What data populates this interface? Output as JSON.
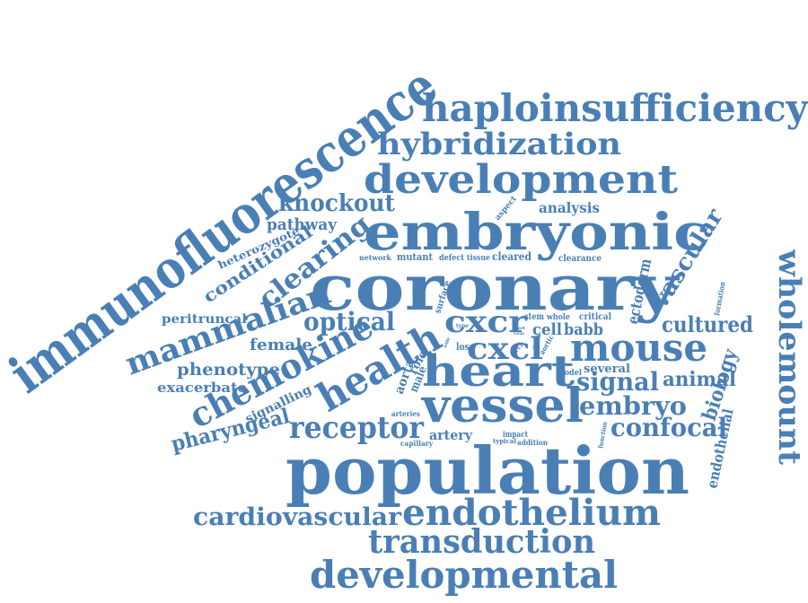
{
  "color": "#4a7fb5",
  "words": [
    "immunofluorescence",
    "coronary",
    "population",
    "embryonic",
    "development",
    "haploinsufficiency",
    "hybridization",
    "vessel",
    "heart",
    "mouse",
    "cxcr",
    "cxcl",
    "endothelium",
    "developmental",
    "transduction",
    "cardiovascular",
    "wholemount",
    "health",
    "chemokine",
    "mammalian",
    "receptor",
    "clearing",
    "knockout",
    "embryo",
    "signal",
    "confocal",
    "optical",
    "vascular",
    "cultured",
    "phenotype",
    "pharyngeal",
    "conditional",
    "female",
    "animal",
    "biology",
    "pathway",
    "exacerbate",
    "peritruncal",
    "heterozygote",
    "signalling",
    "analysis",
    "endothelial",
    "artery",
    "ectoderm",
    "babb",
    "cell",
    "aorta",
    "male",
    "role",
    "several",
    "cleared",
    "mutant",
    "clearance",
    "defect",
    "tissue",
    "aspect",
    "network",
    "stem",
    "whole",
    "critical",
    "formation",
    "surface",
    "loss",
    "arch",
    "axis",
    "aortic",
    "model",
    "arteries",
    "capillary",
    "impact",
    "typical",
    "addition",
    "function",
    "type",
    "part",
    "term",
    "wide"
  ]
}
